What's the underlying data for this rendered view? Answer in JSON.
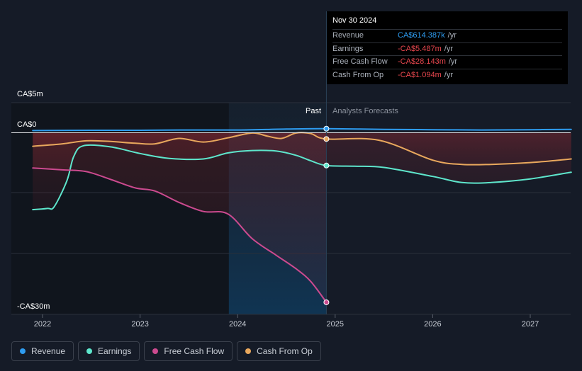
{
  "chart_data": {
    "type": "line",
    "y_tick_labels": [
      "CA$5m",
      "CA$0",
      "-CA$30m"
    ],
    "ylim": [
      -30,
      5
    ],
    "y_unit": "CA$m",
    "x_tick_labels": [
      "2022",
      "2023",
      "2024",
      "2025",
      "2026",
      "2027"
    ],
    "xlim": [
      2021.9,
      2027.42
    ],
    "divider_x": 2024.91,
    "highlight_range": [
      2023.91,
      2024.91
    ],
    "period_labels": {
      "past": "Past",
      "forecast": "Analysts Forecasts"
    },
    "series": [
      {
        "name": "Revenue",
        "color": "#2e9cf0",
        "x": [
          2021.9,
          2022.5,
          2023.0,
          2023.5,
          2024.0,
          2024.5,
          2024.91,
          2025.5,
          2026.0,
          2026.5,
          2027.0,
          2027.42
        ],
        "y": [
          0.3,
          0.35,
          0.35,
          0.4,
          0.4,
          0.55,
          0.614,
          0.5,
          0.45,
          0.4,
          0.45,
          0.5
        ]
      },
      {
        "name": "Earnings",
        "color": "#5ee6cc",
        "x": [
          2021.9,
          2022.05,
          2022.12,
          2022.25,
          2022.32,
          2022.42,
          2022.7,
          2023.0,
          2023.3,
          2023.65,
          2023.9,
          2024.15,
          2024.4,
          2024.6,
          2024.75,
          2024.91,
          2025.2,
          2025.5,
          2026.0,
          2026.3,
          2026.6,
          2027.0,
          2027.42
        ],
        "y": [
          -12.8,
          -12.6,
          -12.3,
          -8.0,
          -4.0,
          -2.2,
          -2.4,
          -3.5,
          -4.3,
          -4.4,
          -3.4,
          -3.0,
          -3.1,
          -3.8,
          -4.7,
          -5.487,
          -5.6,
          -5.8,
          -7.3,
          -8.3,
          -8.3,
          -7.7,
          -6.6
        ]
      },
      {
        "name": "Free Cash Flow",
        "color": "#cc4a8f",
        "x": [
          2021.9,
          2022.2,
          2022.45,
          2022.7,
          2022.95,
          2023.15,
          2023.4,
          2023.65,
          2023.9,
          2024.15,
          2024.4,
          2024.6,
          2024.75,
          2024.91
        ],
        "y": [
          -5.9,
          -6.2,
          -6.5,
          -7.8,
          -9.2,
          -9.7,
          -11.6,
          -13.1,
          -13.5,
          -17.6,
          -20.4,
          -22.6,
          -24.7,
          -28.143
        ]
      },
      {
        "name": "Cash From Op",
        "color": "#e9a85d",
        "x": [
          2021.9,
          2022.2,
          2022.45,
          2022.7,
          2022.95,
          2023.15,
          2023.4,
          2023.65,
          2023.9,
          2024.15,
          2024.3,
          2024.45,
          2024.6,
          2024.75,
          2024.91,
          2025.45,
          2026.0,
          2026.3,
          2026.6,
          2027.0,
          2027.42
        ],
        "y": [
          -2.3,
          -1.9,
          -1.4,
          -1.5,
          -1.8,
          -1.9,
          -1.0,
          -1.6,
          -0.9,
          -0.1,
          -0.6,
          -1.0,
          -0.1,
          -0.2,
          -1.094,
          -1.3,
          -4.6,
          -5.3,
          -5.3,
          -5.0,
          -4.4
        ]
      }
    ]
  },
  "tooltip": {
    "date": "Nov 30 2024",
    "rows": [
      {
        "label": "Revenue",
        "value": "CA$614.387k",
        "unit": "/yr",
        "color": "#2e9cf0"
      },
      {
        "label": "Earnings",
        "value": "-CA$5.487m",
        "unit": "/yr",
        "color": "#e8474e"
      },
      {
        "label": "Free Cash Flow",
        "value": "-CA$28.143m",
        "unit": "/yr",
        "color": "#e8474e"
      },
      {
        "label": "Cash From Op",
        "value": "-CA$1.094m",
        "unit": "/yr",
        "color": "#e8474e"
      }
    ]
  },
  "legend": [
    {
      "label": "Revenue",
      "color": "#2e9cf0"
    },
    {
      "label": "Earnings",
      "color": "#5ee6cc"
    },
    {
      "label": "Free Cash Flow",
      "color": "#cc4a8f"
    },
    {
      "label": "Cash From Op",
      "color": "#e9a85d"
    }
  ]
}
